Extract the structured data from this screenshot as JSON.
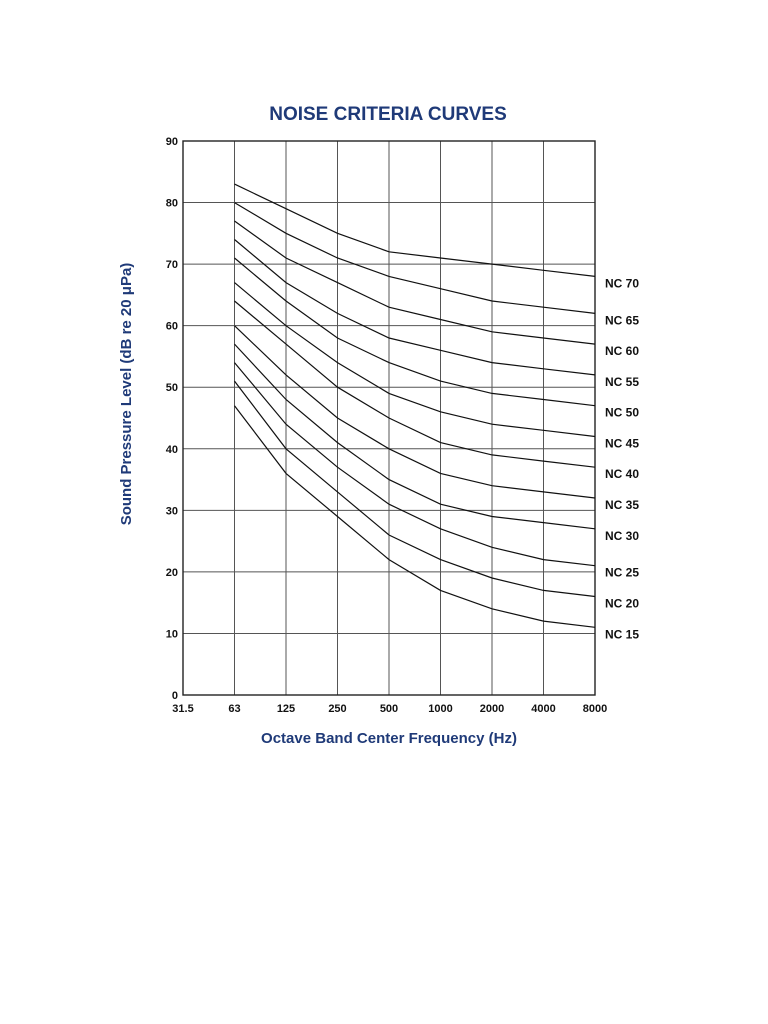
{
  "chart_data": {
    "type": "line",
    "title": "NOISE CRITERIA CURVES",
    "xlabel": "Octave Band Center Frequency (Hz)",
    "ylabel": "Sound Pressure Level (dB re 20 μPa)",
    "x_categories": [
      "31.5",
      "63",
      "125",
      "250",
      "500",
      "1000",
      "2000",
      "4000",
      "8000"
    ],
    "x": [
      "63",
      "125",
      "250",
      "500",
      "1000",
      "2000",
      "4000",
      "8000"
    ],
    "ylim": [
      0,
      90
    ],
    "y_ticks": [
      0,
      10,
      20,
      30,
      40,
      50,
      60,
      70,
      80,
      90
    ],
    "grid": true,
    "grid_y_major": [
      40,
      70
    ],
    "series": [
      {
        "name": "NC 70",
        "values": [
          83,
          79,
          75,
          72,
          71,
          70,
          69,
          68
        ]
      },
      {
        "name": "NC 65",
        "values": [
          80,
          75,
          71,
          68,
          66,
          64,
          63,
          62
        ]
      },
      {
        "name": "NC 60",
        "values": [
          77,
          71,
          67,
          63,
          61,
          59,
          58,
          57
        ]
      },
      {
        "name": "NC 55",
        "values": [
          74,
          67,
          62,
          58,
          56,
          54,
          53,
          52
        ]
      },
      {
        "name": "NC 50",
        "values": [
          71,
          64,
          58,
          54,
          51,
          49,
          48,
          47
        ]
      },
      {
        "name": "NC 45",
        "values": [
          67,
          60,
          54,
          49,
          46,
          44,
          43,
          42
        ]
      },
      {
        "name": "NC 40",
        "values": [
          64,
          57,
          50,
          45,
          41,
          39,
          38,
          37
        ]
      },
      {
        "name": "NC 35",
        "values": [
          60,
          52,
          45,
          40,
          36,
          34,
          33,
          32
        ]
      },
      {
        "name": "NC 30",
        "values": [
          57,
          48,
          41,
          35,
          31,
          29,
          28,
          27
        ]
      },
      {
        "name": "NC 25",
        "values": [
          54,
          44,
          37,
          31,
          27,
          24,
          22,
          21
        ]
      },
      {
        "name": "NC 20",
        "values": [
          51,
          40,
          33,
          26,
          22,
          19,
          17,
          16
        ]
      },
      {
        "name": "NC 15",
        "values": [
          47,
          36,
          29,
          22,
          17,
          14,
          12,
          11
        ]
      }
    ]
  }
}
